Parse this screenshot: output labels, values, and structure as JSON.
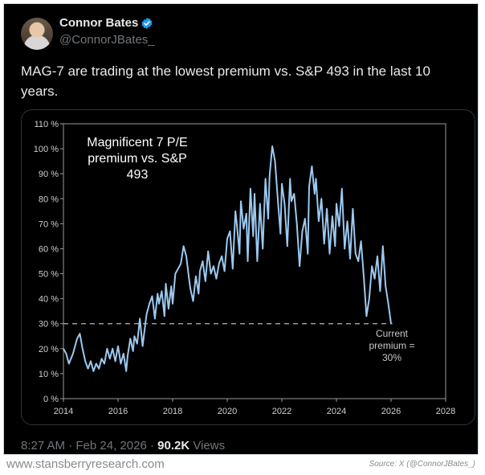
{
  "tweet": {
    "author_name": "Connor Bates",
    "handle": "@ConnorJBates_",
    "text": "MAG-7 are trading at the lowest premium vs. S&P 493 in the last 10 years.",
    "time": "8:27 AM",
    "date": "Feb 24, 2026",
    "views_count": "90.2K",
    "views_label": "Views"
  },
  "footer": {
    "left": "www.stansberryresearch.com",
    "right": "Source: X (@ConnorJBates_)"
  },
  "colors": {
    "line": "#9cc9f0",
    "background": "#000000",
    "accent": "#1d9bf0"
  },
  "chart_data": {
    "type": "line",
    "title_lines": [
      "Magnificent 7 P/E",
      "premium vs. S&P",
      "493"
    ],
    "xlabel": "",
    "ylabel": "",
    "xlim": [
      2014,
      2028
    ],
    "ylim": [
      0,
      110
    ],
    "x_ticks": [
      "2014",
      "2016",
      "2018",
      "2020",
      "2022",
      "2024",
      "2026",
      "2028"
    ],
    "y_ticks": [
      "0 %",
      "10 %",
      "20 %",
      "30 %",
      "40 %",
      "50 %",
      "60 %",
      "70 %",
      "80 %",
      "90 %",
      "100 %",
      "110 %"
    ],
    "reference_line": {
      "value": 30,
      "style": "dashed"
    },
    "annotation_lines": [
      "Current",
      "premium =",
      "30%"
    ],
    "series": [
      {
        "name": "Magnificent 7 P/E premium vs. S&P 493",
        "x": [
          2014.0,
          2014.1,
          2014.2,
          2014.35,
          2014.5,
          2014.6,
          2014.7,
          2014.8,
          2014.9,
          2015.0,
          2015.1,
          2015.2,
          2015.3,
          2015.4,
          2015.5,
          2015.6,
          2015.7,
          2015.8,
          2015.9,
          2016.0,
          2016.1,
          2016.2,
          2016.3,
          2016.35,
          2016.45,
          2016.55,
          2016.6,
          2016.7,
          2016.8,
          2016.9,
          2017.0,
          2017.05,
          2017.15,
          2017.25,
          2017.35,
          2017.45,
          2017.5,
          2017.6,
          2017.7,
          2017.75,
          2017.85,
          2017.95,
          2018.0,
          2018.1,
          2018.2,
          2018.3,
          2018.4,
          2018.5,
          2018.6,
          2018.65,
          2018.75,
          2018.85,
          2018.95,
          2019.0,
          2019.1,
          2019.2,
          2019.3,
          2019.4,
          2019.5,
          2019.6,
          2019.7,
          2019.8,
          2019.9,
          2020.0,
          2020.1,
          2020.2,
          2020.3,
          2020.35,
          2020.45,
          2020.5,
          2020.6,
          2020.7,
          2020.75,
          2020.85,
          2020.95,
          2021.0,
          2021.1,
          2021.2,
          2021.3,
          2021.4,
          2021.5,
          2021.55,
          2021.65,
          2021.75,
          2021.85,
          2021.95,
          2022.0,
          2022.1,
          2022.2,
          2022.3,
          2022.35,
          2022.45,
          2022.55,
          2022.65,
          2022.75,
          2022.85,
          2022.95,
          2023.0,
          2023.1,
          2023.2,
          2023.25,
          2023.35,
          2023.45,
          2023.55,
          2023.65,
          2023.75,
          2023.85,
          2023.95,
          2024.0,
          2024.1,
          2024.2,
          2024.3,
          2024.4,
          2024.5,
          2024.6,
          2024.7,
          2024.8,
          2024.9,
          2025.0,
          2025.1,
          2025.2,
          2025.3,
          2025.4,
          2025.5,
          2025.6,
          2025.7,
          2025.8,
          2025.9,
          2026.0
        ],
        "y": [
          20,
          18,
          14,
          18,
          24,
          26,
          20,
          15,
          12,
          15,
          11,
          14,
          12,
          16,
          14,
          20,
          16,
          20,
          15,
          21,
          14,
          18,
          11,
          17,
          24,
          19,
          25,
          22,
          32,
          21,
          30,
          34,
          38,
          41,
          32,
          42,
          38,
          43,
          33,
          46,
          36,
          45,
          38,
          50,
          52,
          54,
          61,
          57,
          48,
          44,
          39,
          49,
          42,
          51,
          55,
          47,
          59,
          50,
          53,
          48,
          54,
          57,
          51,
          64,
          67,
          52,
          75,
          70,
          58,
          79,
          68,
          74,
          55,
          84,
          65,
          82,
          55,
          78,
          60,
          88,
          72,
          89,
          101,
          95,
          80,
          66,
          86,
          78,
          61,
          88,
          79,
          82,
          70,
          53,
          67,
          72,
          58,
          85,
          93,
          82,
          88,
          71,
          80,
          62,
          76,
          58,
          73,
          61,
          78,
          69,
          84,
          60,
          71,
          56,
          76,
          58,
          55,
          63,
          49,
          33,
          40,
          53,
          48,
          57,
          43,
          61,
          45,
          38,
          30
        ]
      }
    ]
  }
}
